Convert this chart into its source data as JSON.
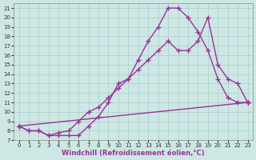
{
  "xlabel": "Windchill (Refroidissement éolien,°C)",
  "bg_color": "#cde8e4",
  "line_color": "#993399",
  "grid_color": "#aacccc",
  "xlim": [
    -0.5,
    23.5
  ],
  "ylim": [
    7,
    21.5
  ],
  "xticks": [
    0,
    1,
    2,
    3,
    4,
    5,
    6,
    7,
    8,
    9,
    10,
    11,
    12,
    13,
    14,
    15,
    16,
    17,
    18,
    19,
    20,
    21,
    22,
    23
  ],
  "yticks": [
    7,
    8,
    9,
    10,
    11,
    12,
    13,
    14,
    15,
    16,
    17,
    18,
    19,
    20,
    21
  ],
  "line1_x": [
    0,
    1,
    2,
    3,
    4,
    5,
    6,
    7,
    8,
    9,
    10,
    11,
    12,
    13,
    14,
    15,
    16,
    17,
    18,
    19,
    20,
    21,
    22,
    23
  ],
  "line1_y": [
    8.5,
    8.0,
    8.0,
    7.5,
    7.5,
    7.5,
    7.5,
    8.5,
    9.5,
    11.0,
    13.0,
    13.5,
    15.5,
    17.5,
    19.0,
    21.0,
    21.0,
    20.0,
    18.5,
    16.5,
    13.5,
    11.5,
    11.0,
    11.0
  ],
  "line2_x": [
    0,
    1,
    2,
    3,
    4,
    5,
    6,
    7,
    8,
    9,
    10,
    11,
    12,
    13,
    14,
    15,
    16,
    17,
    18,
    19,
    20,
    21,
    22,
    23
  ],
  "line2_y": [
    8.5,
    8.0,
    8.0,
    7.5,
    7.8,
    8.0,
    9.0,
    10.0,
    10.5,
    11.5,
    12.5,
    13.5,
    14.5,
    15.5,
    16.5,
    17.5,
    16.5,
    16.5,
    17.5,
    20.0,
    15.0,
    13.5,
    13.0,
    11.0
  ],
  "line3_x": [
    0,
    23
  ],
  "line3_y": [
    8.5,
    11.0
  ],
  "marker": "+",
  "markersize": 4,
  "linewidth": 1.0,
  "axis_fontsize": 6,
  "tick_fontsize": 5
}
